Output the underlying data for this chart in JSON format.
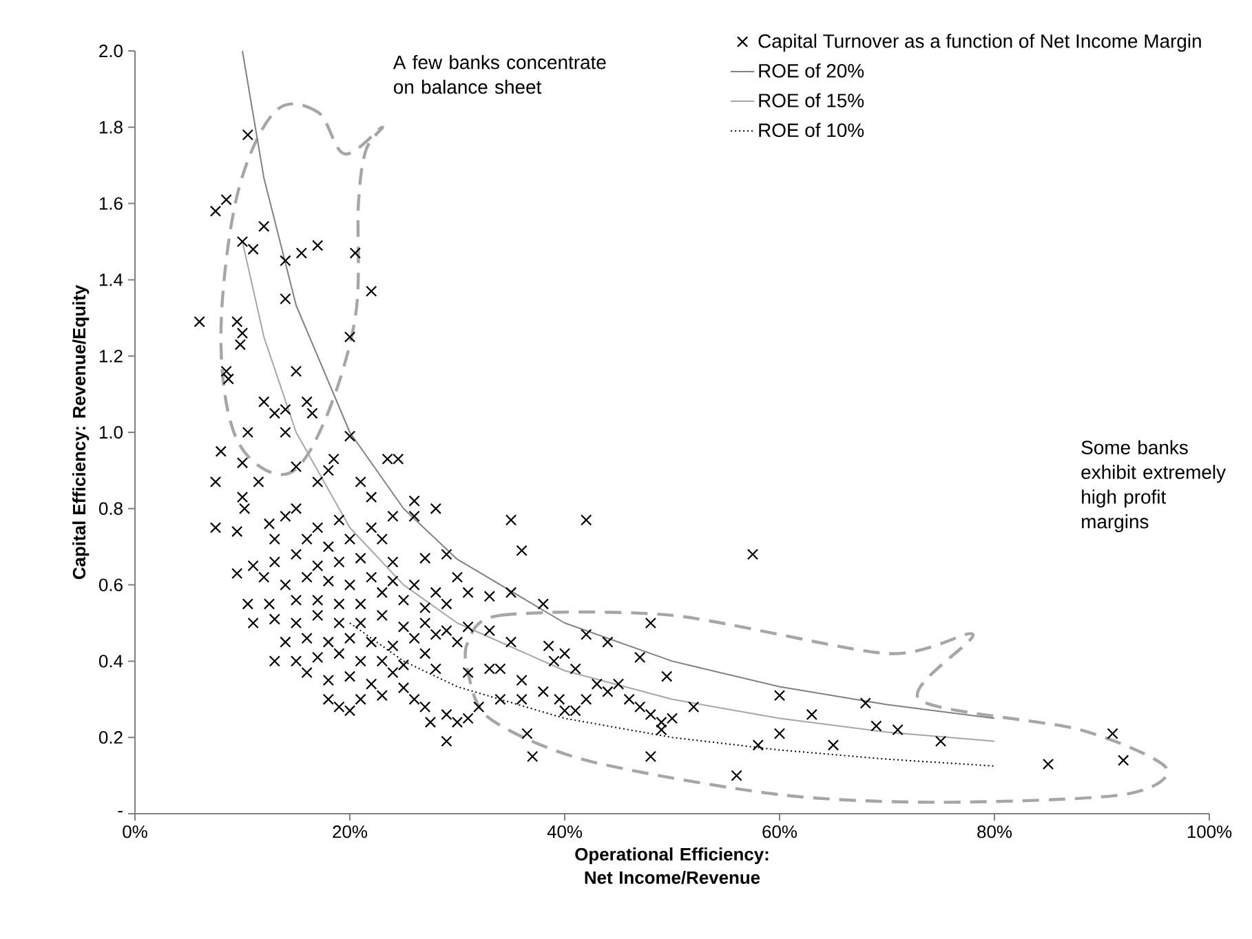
{
  "chart_data": {
    "type": "scatter",
    "xlabel": "Operational Efficiency: Net Income/Revenue",
    "ylabel": "Capital Efficiency: Revenue/Equity",
    "xlim": [
      0,
      100
    ],
    "ylim": [
      0,
      2.0
    ],
    "xticks": [
      {
        "value": 0,
        "label": "0%"
      },
      {
        "value": 20,
        "label": "20%"
      },
      {
        "value": 40,
        "label": "40%"
      },
      {
        "value": 60,
        "label": "60%"
      },
      {
        "value": 80,
        "label": "80%"
      },
      {
        "value": 100,
        "label": "100%"
      }
    ],
    "yticks": [
      {
        "value": 0,
        "label": "-"
      },
      0.2,
      0.4,
      0.6,
      0.8,
      {
        "value": 1.0,
        "label": "1.0"
      },
      1.2,
      1.4,
      1.6,
      1.8,
      {
        "value": 2.0,
        "label": "2.0"
      }
    ],
    "legend": "top right",
    "annotations": [
      "A few banks concentrate on balance sheet",
      "Some banks exhibit extremely high profit margins"
    ],
    "series": [
      {
        "name": "Capital Turnover as a function of Net Income Margin",
        "type": "scatter",
        "marker": "cross",
        "color": "#000000",
        "x": [
          10.5,
          8.5,
          7.5,
          6,
          12,
          11,
          10,
          14,
          15.5,
          17,
          20.5,
          22,
          9.5,
          10,
          9.8,
          14,
          20,
          8.5,
          8.7,
          15,
          12,
          14,
          13,
          16,
          16.5,
          14,
          10.5,
          20,
          8,
          10,
          15,
          18.5,
          23.5,
          24.5,
          7.5,
          11.5,
          17,
          18,
          21,
          22,
          10,
          10.2,
          26,
          7.5,
          9.5,
          12.5,
          14,
          15,
          17,
          19,
          22,
          24,
          26,
          28,
          13,
          16,
          18,
          20,
          23,
          9.5,
          11,
          13,
          15,
          17,
          19,
          21,
          24,
          27,
          29,
          30,
          12,
          14,
          16,
          18,
          20,
          22,
          24,
          26,
          28,
          31,
          33,
          10.5,
          12.5,
          15,
          17,
          19,
          21,
          23,
          25,
          27,
          29,
          11,
          13,
          15,
          17,
          19,
          21,
          23,
          25,
          27,
          29,
          31,
          33,
          35,
          14,
          16,
          18,
          20,
          22,
          24,
          26,
          28,
          30,
          13,
          15,
          17,
          19,
          21,
          23,
          25,
          27,
          16,
          18,
          20,
          22,
          24,
          28,
          31,
          34,
          18,
          19,
          20,
          21,
          23,
          25,
          27,
          29,
          31,
          26,
          27.5,
          29,
          30,
          32,
          36,
          36.5,
          37,
          35,
          42,
          36,
          35,
          38,
          38.5,
          40,
          42,
          44,
          39,
          41,
          45,
          48,
          47,
          44,
          38,
          39.5,
          41,
          42,
          47,
          48,
          49,
          49,
          50,
          48,
          49.5,
          52,
          57.5,
          56,
          58,
          60,
          60,
          63,
          65,
          68,
          69,
          71,
          75,
          85,
          91,
          92,
          33,
          36,
          34,
          40,
          43,
          46
        ],
        "values": [
          1.78,
          1.61,
          1.58,
          1.29,
          1.54,
          1.48,
          1.5,
          1.45,
          1.47,
          1.49,
          1.47,
          1.37,
          1.29,
          1.26,
          1.23,
          1.35,
          1.25,
          1.16,
          1.14,
          1.16,
          1.08,
          1.06,
          1.05,
          1.08,
          1.05,
          1.0,
          1.0,
          0.99,
          0.95,
          0.92,
          0.91,
          0.93,
          0.93,
          0.93,
          0.87,
          0.87,
          0.87,
          0.9,
          0.87,
          0.83,
          0.83,
          0.8,
          0.82,
          0.75,
          0.74,
          0.76,
          0.78,
          0.8,
          0.75,
          0.77,
          0.75,
          0.78,
          0.78,
          0.8,
          0.72,
          0.72,
          0.7,
          0.72,
          0.72,
          0.63,
          0.65,
          0.66,
          0.68,
          0.65,
          0.66,
          0.67,
          0.66,
          0.67,
          0.68,
          0.62,
          0.62,
          0.6,
          0.62,
          0.61,
          0.6,
          0.62,
          0.61,
          0.6,
          0.58,
          0.58,
          0.57,
          0.55,
          0.55,
          0.56,
          0.56,
          0.55,
          0.55,
          0.58,
          0.56,
          0.54,
          0.55,
          0.5,
          0.51,
          0.5,
          0.52,
          0.5,
          0.5,
          0.52,
          0.49,
          0.5,
          0.48,
          0.49,
          0.48,
          0.45,
          0.45,
          0.46,
          0.45,
          0.46,
          0.45,
          0.44,
          0.46,
          0.47,
          0.45,
          0.4,
          0.4,
          0.41,
          0.42,
          0.4,
          0.4,
          0.39,
          0.42,
          0.37,
          0.35,
          0.36,
          0.34,
          0.37,
          0.38,
          0.37,
          0.38,
          0.3,
          0.28,
          0.27,
          0.3,
          0.31,
          0.33,
          0.28,
          0.26,
          0.25,
          0.3,
          0.24,
          0.19,
          0.24,
          0.28,
          0.3,
          0.21,
          0.15,
          0.77,
          0.77,
          0.69,
          0.58,
          0.55,
          0.44,
          0.42,
          0.47,
          0.45,
          0.4,
          0.38,
          0.34,
          0.5,
          0.41,
          0.32,
          0.32,
          0.3,
          0.27,
          0.3,
          0.28,
          0.26,
          0.24,
          0.22,
          0.25,
          0.15,
          0.36,
          0.28,
          0.68,
          0.1,
          0.18,
          0.31,
          0.21,
          0.26,
          0.18,
          0.29,
          0.23,
          0.22,
          0.19,
          0.13,
          0.21,
          0.14,
          0.38,
          0.35,
          0.3,
          0.27,
          0.34,
          0.3
        ]
      },
      {
        "name": "ROE of 20%",
        "type": "line",
        "line_style": "solid",
        "color": "#808080",
        "x": [
          10,
          12,
          15,
          20,
          25,
          30,
          40,
          50,
          60,
          70,
          80
        ],
        "values": [
          2.0,
          1.667,
          1.333,
          1.0,
          0.8,
          0.667,
          0.5,
          0.4,
          0.333,
          0.286,
          0.25
        ]
      },
      {
        "name": "ROE of 15%",
        "type": "line",
        "line_style": "solid",
        "color": "#a6a6a6",
        "x": [
          10,
          12,
          15,
          20,
          25,
          30,
          40,
          50,
          60,
          70,
          80
        ],
        "values": [
          1.5,
          1.25,
          1.0,
          0.75,
          0.6,
          0.5,
          0.375,
          0.3,
          0.25,
          0.214,
          0.19
        ]
      },
      {
        "name": "ROE of 10%",
        "type": "line",
        "line_style": "dotted",
        "color": "#000000",
        "x": [
          20,
          25,
          30,
          40,
          50,
          60,
          70,
          80
        ],
        "values": [
          0.5,
          0.4,
          0.333,
          0.25,
          0.2,
          0.167,
          0.143,
          0.125
        ]
      }
    ]
  }
}
